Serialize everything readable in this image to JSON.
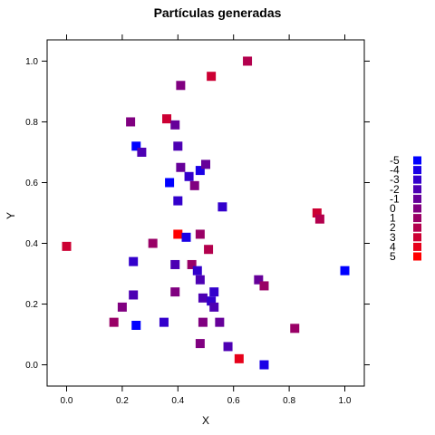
{
  "chart_data": {
    "type": "scatter",
    "title": "Partículas generadas",
    "xlabel": "X",
    "ylabel": "Y",
    "xlim": [
      -0.07,
      1.07
    ],
    "ylim": [
      -0.07,
      1.07
    ],
    "xticks": [
      "0.0",
      "0.2",
      "0.4",
      "0.6",
      "0.8",
      "1.0"
    ],
    "yticks": [
      "0.0",
      "0.2",
      "0.4",
      "0.6",
      "0.8",
      "1.0"
    ],
    "grid": false,
    "legend_position": "right",
    "legend": {
      "levels": [
        "-5",
        "-4",
        "-3",
        "-2",
        "-1",
        "0",
        "1",
        "2",
        "3",
        "4",
        "5"
      ],
      "colors": [
        "#0000ff",
        "#1a00e6",
        "#3300cc",
        "#4d00b3",
        "#660099",
        "#800080",
        "#990066",
        "#b3004d",
        "#cc0033",
        "#e6001a",
        "#ff0000"
      ]
    },
    "points": [
      {
        "x": 0.0,
        "y": 0.39,
        "level": 3
      },
      {
        "x": 0.17,
        "y": 0.14,
        "level": 1
      },
      {
        "x": 0.2,
        "y": 0.19,
        "level": 0
      },
      {
        "x": 0.23,
        "y": 0.8,
        "level": 0
      },
      {
        "x": 0.24,
        "y": 0.34,
        "level": -3
      },
      {
        "x": 0.24,
        "y": 0.23,
        "level": -2
      },
      {
        "x": 0.25,
        "y": 0.13,
        "level": -5
      },
      {
        "x": 0.25,
        "y": 0.72,
        "level": -5
      },
      {
        "x": 0.27,
        "y": 0.7,
        "level": -2
      },
      {
        "x": 0.31,
        "y": 0.4,
        "level": 1
      },
      {
        "x": 0.35,
        "y": 0.14,
        "level": -3
      },
      {
        "x": 0.36,
        "y": 0.81,
        "level": 3
      },
      {
        "x": 0.37,
        "y": 0.6,
        "level": -5
      },
      {
        "x": 0.39,
        "y": 0.79,
        "level": -1
      },
      {
        "x": 0.39,
        "y": 0.24,
        "level": 0
      },
      {
        "x": 0.39,
        "y": 0.33,
        "level": -2
      },
      {
        "x": 0.4,
        "y": 0.72,
        "level": -2
      },
      {
        "x": 0.4,
        "y": 0.54,
        "level": -3
      },
      {
        "x": 0.4,
        "y": 0.43,
        "level": 5
      },
      {
        "x": 0.41,
        "y": 0.92,
        "level": 0
      },
      {
        "x": 0.41,
        "y": 0.65,
        "level": -1
      },
      {
        "x": 0.43,
        "y": 0.42,
        "level": -4
      },
      {
        "x": 0.44,
        "y": 0.62,
        "level": -3
      },
      {
        "x": 0.45,
        "y": 0.33,
        "level": 1
      },
      {
        "x": 0.46,
        "y": 0.59,
        "level": 0
      },
      {
        "x": 0.47,
        "y": 0.31,
        "level": -3
      },
      {
        "x": 0.48,
        "y": 0.43,
        "level": 1
      },
      {
        "x": 0.48,
        "y": 0.28,
        "level": -2
      },
      {
        "x": 0.48,
        "y": 0.07,
        "level": 0
      },
      {
        "x": 0.48,
        "y": 0.64,
        "level": -4
      },
      {
        "x": 0.49,
        "y": 0.14,
        "level": 0
      },
      {
        "x": 0.49,
        "y": 0.22,
        "level": -2
      },
      {
        "x": 0.5,
        "y": 0.66,
        "level": -1
      },
      {
        "x": 0.51,
        "y": 0.38,
        "level": 2
      },
      {
        "x": 0.52,
        "y": 0.95,
        "level": 3
      },
      {
        "x": 0.52,
        "y": 0.21,
        "level": -3
      },
      {
        "x": 0.53,
        "y": 0.24,
        "level": -3
      },
      {
        "x": 0.53,
        "y": 0.19,
        "level": -2
      },
      {
        "x": 0.55,
        "y": 0.14,
        "level": -1
      },
      {
        "x": 0.56,
        "y": 0.52,
        "level": -3
      },
      {
        "x": 0.58,
        "y": 0.06,
        "level": -2
      },
      {
        "x": 0.62,
        "y": 0.02,
        "level": 4
      },
      {
        "x": 0.65,
        "y": 1.0,
        "level": 2
      },
      {
        "x": 0.69,
        "y": 0.28,
        "level": -1
      },
      {
        "x": 0.71,
        "y": 0.0,
        "level": -4
      },
      {
        "x": 0.71,
        "y": 0.26,
        "level": 1
      },
      {
        "x": 0.82,
        "y": 0.12,
        "level": 1
      },
      {
        "x": 0.9,
        "y": 0.5,
        "level": 3
      },
      {
        "x": 0.91,
        "y": 0.48,
        "level": 2
      },
      {
        "x": 1.0,
        "y": 0.31,
        "level": -5
      }
    ]
  }
}
